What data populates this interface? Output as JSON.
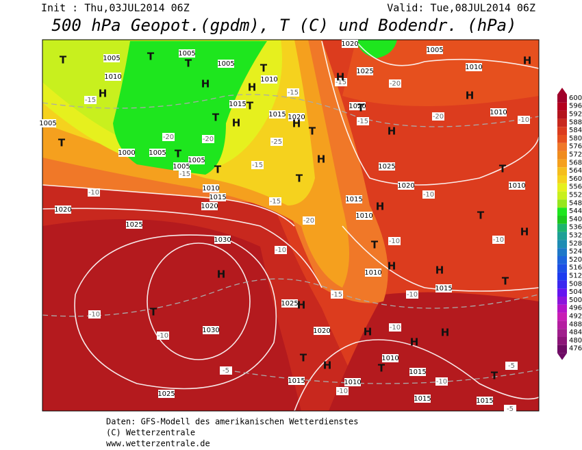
{
  "header": {
    "init": "Init : Thu,03JUL2014 06Z",
    "valid": "Valid: Tue,08JUL2014 06Z",
    "title": "500 hPa Geopot.(gpdm), T (C) und Bodendr. (hPa)"
  },
  "colorbar": {
    "levels": [
      600,
      596,
      592,
      588,
      584,
      580,
      576,
      572,
      568,
      564,
      560,
      556,
      552,
      548,
      544,
      540,
      536,
      532,
      528,
      524,
      520,
      516,
      512,
      508,
      504,
      500,
      496,
      492,
      488,
      484,
      480,
      476
    ],
    "colors": [
      "#a0002a",
      "#b4001e",
      "#b4141e",
      "#c8281e",
      "#dc3c1e",
      "#e6501e",
      "#f07828",
      "#f08c1e",
      "#f5a01e",
      "#f5be1e",
      "#f5d21e",
      "#e6f01e",
      "#c8f01e",
      "#96e61e",
      "#1ee61e",
      "#1ec81e",
      "#1eb46e",
      "#1ea096",
      "#1e8cb4",
      "#1e78c8",
      "#1e64dc",
      "#1e50e6",
      "#1e3cf0",
      "#3c28f0",
      "#6414f0",
      "#8c14dc",
      "#b414c8",
      "#c81eb4",
      "#b41ea0",
      "#a01e8c",
      "#8c1478",
      "#6e0a64"
    ]
  },
  "map_labels": [
    "1005",
    "1005",
    "1005",
    "1010",
    "1010",
    "1015",
    "1015",
    "1020",
    "1000",
    "1005",
    "1005",
    "1005",
    "1010",
    "1015",
    "1020",
    "1020",
    "1025",
    "1030",
    "1030",
    "1025",
    "1020",
    "1025",
    "1015",
    "1010",
    "1015",
    "1015",
    "1015",
    "1010",
    "1010",
    "1015",
    "1010",
    "1015",
    "1020",
    "1025",
    "1020",
    "1025",
    "1020",
    "1005",
    "1010",
    "1010",
    "1010",
    "1005",
    "-15",
    "-20",
    "-20",
    "-15",
    "-10",
    "-15",
    "-25",
    "-15",
    "-15",
    "-20",
    "-20",
    "-15",
    "-15",
    "-10",
    "-20",
    "-10",
    "-10",
    "-5",
    "-10",
    "-10",
    "-15",
    "-10",
    "-10",
    "-10",
    "-10",
    "-5",
    "-10",
    "-10",
    "-5",
    "T",
    "T",
    "T",
    "H",
    "H",
    "H",
    "T",
    "T",
    "H",
    "T",
    "H",
    "T",
    "T",
    "T",
    "H",
    "T",
    "H",
    "H",
    "T",
    "H",
    "T",
    "H",
    "T",
    "T",
    "H",
    "H",
    "T",
    "H",
    "H",
    "T",
    "H",
    "T",
    "H",
    "H",
    "H",
    "T",
    "H",
    "T",
    "H",
    "T"
  ],
  "footer": [
    "Daten: GFS-Modell des amerikanischen Wetterdienstes",
    "(C) Wetterzentrale",
    "www.wetterzentrale.de"
  ]
}
